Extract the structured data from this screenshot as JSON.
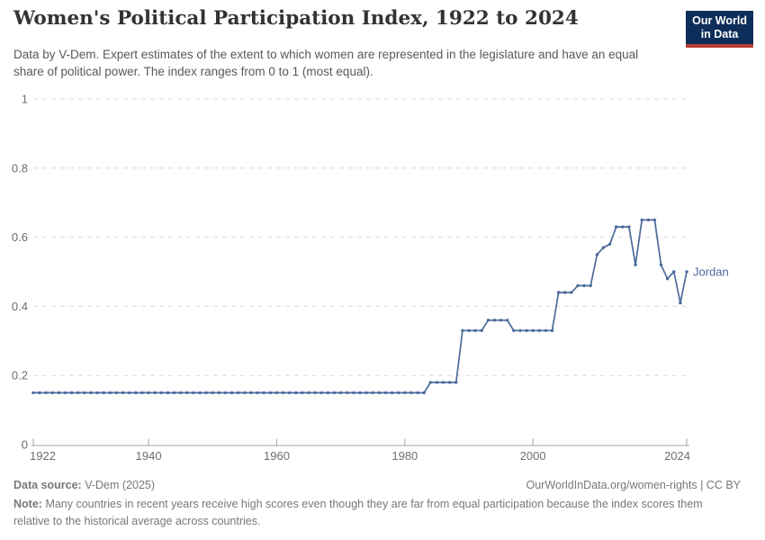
{
  "header": {
    "title": "Women's Political Participation Index, 1922 to 2024",
    "subtitle": "Data by V-Dem. Expert estimates of the extent to which women are represented in the legislature and have an equal share of political power. The index ranges from 0 to 1 (most equal).",
    "logo": {
      "line1": "Our World",
      "line2": "in Data",
      "bg_color": "#0d2d5a",
      "accent_color": "#b93d33"
    }
  },
  "chart_data": {
    "type": "line",
    "title": "Women's Political Participation Index, 1922 to 2024",
    "xlabel": "",
    "ylabel": "",
    "xlim": [
      1922,
      2024
    ],
    "ylim": [
      0,
      1
    ],
    "x_ticks": [
      1922,
      1940,
      1960,
      1980,
      2000,
      2024
    ],
    "y_ticks": [
      0,
      0.2,
      0.4,
      0.6,
      0.8,
      1
    ],
    "grid": "horizontal-dashed",
    "gridline_color": "#dcdcdc",
    "axis_color": "#a3a3a3",
    "tick_label_color": "#6e6e6e",
    "legend_position": "end-of-line-label",
    "series": [
      {
        "name": "Jordan",
        "color": "#4C6A9C",
        "start_year": 1922,
        "end_year": 2024,
        "values": [
          0.15,
          0.15,
          0.15,
          0.15,
          0.15,
          0.15,
          0.15,
          0.15,
          0.15,
          0.15,
          0.15,
          0.15,
          0.15,
          0.15,
          0.15,
          0.15,
          0.15,
          0.15,
          0.15,
          0.15,
          0.15,
          0.15,
          0.15,
          0.15,
          0.15,
          0.15,
          0.15,
          0.15,
          0.15,
          0.15,
          0.15,
          0.15,
          0.15,
          0.15,
          0.15,
          0.15,
          0.15,
          0.15,
          0.15,
          0.15,
          0.15,
          0.15,
          0.15,
          0.15,
          0.15,
          0.15,
          0.15,
          0.15,
          0.15,
          0.15,
          0.15,
          0.15,
          0.15,
          0.15,
          0.15,
          0.15,
          0.15,
          0.15,
          0.15,
          0.15,
          0.15,
          0.15,
          0.18,
          0.18,
          0.18,
          0.18,
          0.18,
          0.33,
          0.33,
          0.33,
          0.33,
          0.36,
          0.36,
          0.36,
          0.36,
          0.33,
          0.33,
          0.33,
          0.33,
          0.33,
          0.33,
          0.33,
          0.44,
          0.44,
          0.44,
          0.46,
          0.46,
          0.46,
          0.55,
          0.57,
          0.58,
          0.63,
          0.63,
          0.63,
          0.52,
          0.65,
          0.65,
          0.65,
          0.52,
          0.48,
          0.5,
          0.41,
          0.5
        ]
      }
    ]
  },
  "footer": {
    "source_label": "Data source:",
    "source_value": "V-Dem (2025)",
    "rights": "OurWorldInData.org/women-rights | CC BY",
    "note_label": "Note:",
    "note_value": "Many countries in recent years receive high scores even though they are far from equal participation because the index scores them relative to the historical average across countries."
  }
}
